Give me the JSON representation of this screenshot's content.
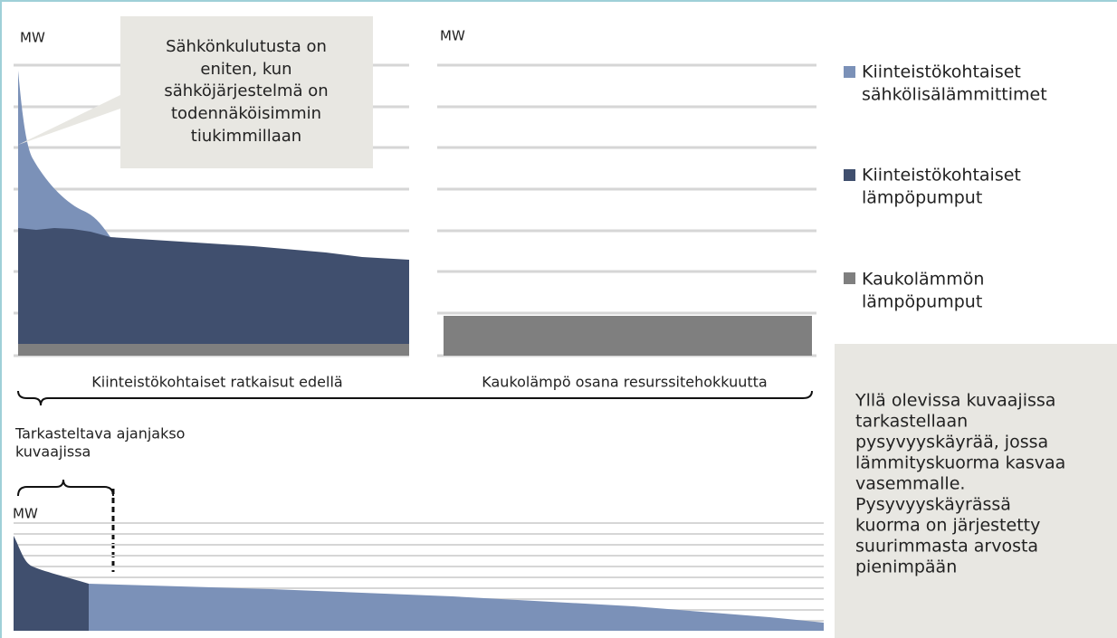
{
  "top_left_chart": {
    "unit": "MW",
    "caption": "Kiinteistökohtaiset ratkaisut edellä"
  },
  "top_right_chart": {
    "unit": "MW",
    "caption": "Kaukolämpö osana resurssitehokkuutta"
  },
  "callout": {
    "lines": [
      "Sähkönkulutusta on",
      "eniten, kun",
      "sähköjärjestelmä on",
      "todennäköisimmin",
      "tiukimmillaan"
    ]
  },
  "legend": [
    {
      "lines": [
        "Kiinteistökohtaiset",
        "sähkölisälämmittimet"
      ]
    },
    {
      "lines": [
        "Kiinteistökohtaiset",
        "lämpöpumput"
      ]
    },
    {
      "lines": [
        "Kaukolämmön",
        "lämpöpumput"
      ]
    }
  ],
  "period_label": {
    "lines": [
      "Tarkasteltava ajanjakso",
      "kuvaajissa"
    ]
  },
  "bottom_chart": {
    "unit": "MW"
  },
  "note": {
    "lines": [
      "Yllä olevissa kuvaajissa",
      "tarkastellaan",
      "pysyvyyskäyrää, jossa",
      "lämmityskuorma kasvaa",
      "vasemmalle.",
      "Pysyvyyskäyrässä",
      "kuorma on järjestetty",
      "suurimmasta arvosta",
      "pienimpään"
    ]
  }
}
